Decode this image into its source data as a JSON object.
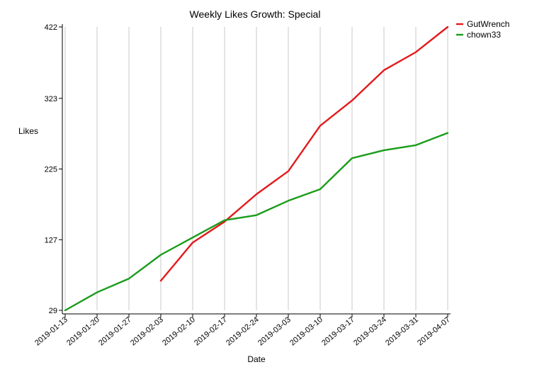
{
  "chart_data": {
    "type": "line",
    "title": "Weekly Likes Growth: Special",
    "xlabel": "Date",
    "ylabel": "Likes",
    "x": [
      "2019-01-13",
      "2019-01-20",
      "2019-01-27",
      "2019-02-03",
      "2019-02-10",
      "2019-02-17",
      "2019-02-24",
      "2019-03-03",
      "2019-03-10",
      "2019-03-17",
      "2019-03-24",
      "2019-03-31",
      "2019-04-07"
    ],
    "yticks": [
      29,
      127,
      225,
      323,
      422
    ],
    "ylim": [
      29,
      422
    ],
    "grid": "vertical",
    "legend_position": "top-right",
    "series": [
      {
        "name": "GutWrench",
        "color": "#e31a1c",
        "values": [
          null,
          null,
          null,
          70,
          123,
          152,
          190,
          222,
          285,
          320,
          362,
          387,
          422
        ]
      },
      {
        "name": "chown33",
        "color": "#1a9c1a",
        "values": [
          29,
          54,
          73,
          106,
          130,
          154,
          161,
          181,
          197,
          240,
          251,
          258,
          275
        ]
      }
    ]
  }
}
